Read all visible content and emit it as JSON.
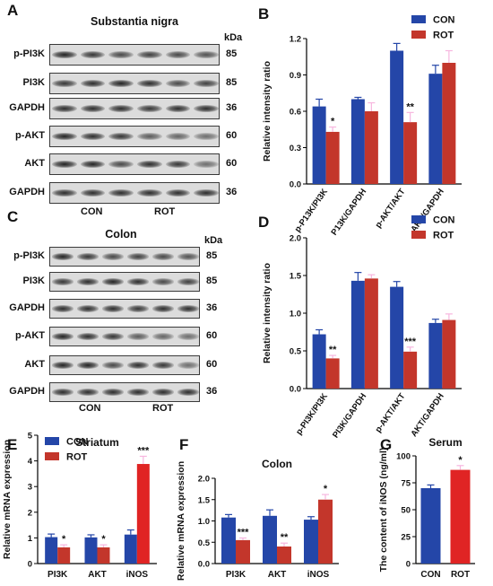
{
  "colors": {
    "con": "#2446a8",
    "rot": "#c3362b",
    "rot_bright": "#e02424",
    "err_pink": "#f7b6df",
    "mark": "#000000"
  },
  "panel_A": {
    "label": "A",
    "title": "Substantia nigra",
    "unit": "kDa",
    "rows": [
      {
        "name": "p-PI3K",
        "mw": "85"
      },
      {
        "name": "PI3K",
        "mw": "85"
      },
      {
        "name": "GAPDH",
        "mw": "36"
      },
      {
        "name": "p-AKT",
        "mw": "60"
      },
      {
        "name": "AKT",
        "mw": "60"
      },
      {
        "name": "GAPDH",
        "mw": "36"
      }
    ],
    "groups": [
      "CON",
      "ROT"
    ]
  },
  "panel_C": {
    "label": "C",
    "title": "Colon",
    "unit": "kDa",
    "rows": [
      {
        "name": "p-PI3K",
        "mw": "85"
      },
      {
        "name": "PI3K",
        "mw": "85"
      },
      {
        "name": "GAPDH",
        "mw": "36"
      },
      {
        "name": "p-AKT",
        "mw": "60"
      },
      {
        "name": "AKT",
        "mw": "60"
      },
      {
        "name": "GAPDH",
        "mw": "36"
      }
    ],
    "groups": [
      "CON",
      "ROT"
    ]
  },
  "chart_data": [
    {
      "id": "B",
      "type": "bar",
      "ylabel": "Relative intensity ratio",
      "ylim": [
        0,
        1.2
      ],
      "ticks": [
        "0.0",
        "0.3",
        "0.6",
        "0.9",
        "1.2"
      ],
      "categories": [
        "p-P13K/PI3K",
        "P13K/GAPDH",
        "p-AKT/AKT",
        "AKT/GAPDH"
      ],
      "series": [
        {
          "name": "CON",
          "values": [
            0.64,
            0.7,
            1.1,
            0.91
          ],
          "err": [
            0.06,
            0.015,
            0.06,
            0.07
          ]
        },
        {
          "name": "ROT",
          "values": [
            0.43,
            0.6,
            0.51,
            1.0
          ],
          "err": [
            0.04,
            0.07,
            0.08,
            0.1
          ]
        }
      ],
      "sig": [
        {
          "cat": 0,
          "text": "*"
        },
        {
          "cat": 2,
          "text": "**"
        }
      ],
      "legend": "top-right"
    },
    {
      "id": "D",
      "type": "bar",
      "ylabel": "Relative intensity ratio",
      "ylim": [
        0,
        2.0
      ],
      "ticks": [
        "0.0",
        "0.5",
        "1.0",
        "1.5",
        "2.0"
      ],
      "categories": [
        "p-PI3K/PI3K",
        "PI3K/GAPDH",
        "p-AKT/AKT",
        "AKT/GAPDH"
      ],
      "series": [
        {
          "name": "CON",
          "values": [
            0.72,
            1.43,
            1.35,
            0.87
          ],
          "err": [
            0.06,
            0.11,
            0.07,
            0.05
          ]
        },
        {
          "name": "ROT",
          "values": [
            0.4,
            1.46,
            0.49,
            0.91
          ],
          "err": [
            0.04,
            0.05,
            0.06,
            0.08
          ]
        }
      ],
      "sig": [
        {
          "cat": 0,
          "text": "**"
        },
        {
          "cat": 2,
          "text": "***"
        }
      ],
      "legend": "top-right"
    },
    {
      "id": "E",
      "type": "bar",
      "title": "Striatum",
      "ylabel": "Relative mRNA expression",
      "ylim": [
        0,
        5
      ],
      "ticks": [
        "0",
        "1",
        "2",
        "3",
        "4",
        "5"
      ],
      "categories": [
        "PI3K",
        "AKT",
        "iNOS"
      ],
      "series": [
        {
          "name": "CON",
          "values": [
            1.03,
            1.02,
            1.13
          ],
          "err": [
            0.12,
            0.1,
            0.18
          ]
        },
        {
          "name": "ROT",
          "values": [
            0.63,
            0.63,
            3.88
          ],
          "err": [
            0.1,
            0.1,
            0.3
          ]
        }
      ],
      "sig": [
        {
          "cat": 0,
          "text": "*"
        },
        {
          "cat": 1,
          "text": "*"
        },
        {
          "cat": 2,
          "text": "***"
        }
      ],
      "legend": "top-left"
    },
    {
      "id": "F",
      "type": "bar",
      "title": "Colon",
      "ylabel": "Relative mRNA expression",
      "ylim": [
        0,
        2.0
      ],
      "ticks": [
        "0.0",
        "0.5",
        "1.0",
        "1.5",
        "2.0"
      ],
      "categories": [
        "PI3K",
        "AKT",
        "iNOS"
      ],
      "series": [
        {
          "name": "CON",
          "values": [
            1.08,
            1.12,
            1.03
          ],
          "err": [
            0.07,
            0.14,
            0.07
          ]
        },
        {
          "name": "ROT",
          "values": [
            0.55,
            0.4,
            1.5
          ],
          "err": [
            0.05,
            0.08,
            0.12
          ]
        }
      ],
      "sig": [
        {
          "cat": 0,
          "text": "***"
        },
        {
          "cat": 1,
          "text": "**"
        },
        {
          "cat": 2,
          "text": "*"
        }
      ],
      "legend": "none"
    },
    {
      "id": "G",
      "type": "bar",
      "title": "Serum",
      "ylabel": "The content of iNOS (ng/ml)",
      "ylim": [
        0,
        100
      ],
      "ticks": [
        "0",
        "25",
        "50",
        "75",
        "100"
      ],
      "categories": [
        "CON",
        "ROT"
      ],
      "series": [
        {
          "name": "values",
          "values": [
            70,
            87
          ],
          "err": [
            3,
            4
          ]
        }
      ],
      "sig": [
        {
          "cat": 1,
          "text": "*"
        }
      ],
      "legend": "none"
    }
  ]
}
